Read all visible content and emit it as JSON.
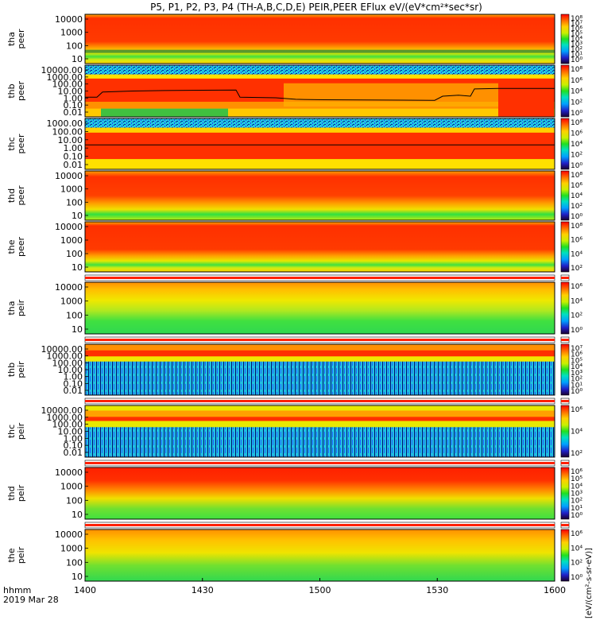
{
  "chart_data": {
    "type": "heatmap",
    "title": "P5, P1, P2, P3, P4 (TH-A,B,C,D,E) PEIR,PEER EFlux eV/(eV*cm²*sec*sr)",
    "x_label_prefix_1": "hhmm",
    "x_label_prefix_2": "2019 Mar 28",
    "x_ticks": [
      "1400",
      "1430",
      "1500",
      "1530",
      "1600"
    ],
    "x_range": [
      "1400",
      "1600"
    ],
    "colorbar_label": "[eV/(cm²-s-sr-eV)]",
    "panels": [
      {
        "id": "tha-peer",
        "label_1": "tha",
        "label_2": "peer",
        "y_ticks": [
          "10000",
          "1000",
          "100",
          "10"
        ],
        "cbar_ticks": [
          "10⁸",
          "10⁷",
          "10⁶",
          "10⁵",
          "10⁴",
          "10³",
          "10²",
          "10¹",
          "10⁰"
        ]
      },
      {
        "id": "thb-peer",
        "label_1": "thb",
        "label_2": "peer",
        "y_ticks": [
          "10000.00",
          "1000.00",
          "100.00",
          "10.00",
          "1.00",
          "0.10",
          "0.01"
        ],
        "cbar_ticks": [
          "10⁸",
          "10⁶",
          "10⁴",
          "10²",
          "10⁰"
        ]
      },
      {
        "id": "thc-peer",
        "label_1": "thc",
        "label_2": "peer",
        "y_ticks": [
          "1000.00",
          "100.00",
          "10.00",
          "1.00",
          "0.10",
          "0.01"
        ],
        "cbar_ticks": [
          "10⁸",
          "10⁶",
          "10⁴",
          "10²",
          "10⁰"
        ]
      },
      {
        "id": "thd-peer",
        "label_1": "thd",
        "label_2": "peer",
        "y_ticks": [
          "10000",
          "1000",
          "100",
          "10"
        ],
        "cbar_ticks": [
          "10⁸",
          "10⁶",
          "10⁴",
          "10²",
          "10⁰"
        ]
      },
      {
        "id": "the-peer",
        "label_1": "the",
        "label_2": "peer",
        "y_ticks": [
          "10000",
          "1000",
          "100",
          "10"
        ],
        "cbar_ticks": [
          "10⁸",
          "10⁶",
          "10⁴",
          "10²"
        ]
      },
      {
        "id": "tha-peir",
        "label_1": "tha",
        "label_2": "peir",
        "y_ticks": [
          "10000",
          "1000",
          "100",
          "10"
        ],
        "cbar_ticks": [
          "10⁶",
          "10⁴",
          "10²",
          "10⁰"
        ]
      },
      {
        "id": "thb-peir",
        "label_1": "thb",
        "label_2": "peir",
        "y_ticks": [
          "10000.00",
          "1000.00",
          "100.00",
          "10.00",
          "1.00",
          "0.10",
          "0.01"
        ],
        "cbar_ticks": [
          "10⁷",
          "10⁶",
          "10⁵",
          "10⁴",
          "10³",
          "10²",
          "10¹",
          "10⁰"
        ]
      },
      {
        "id": "thc-peir",
        "label_1": "thc",
        "label_2": "peir",
        "y_ticks": [
          "10000.00",
          "1000.00",
          "100.00",
          "10.00",
          "1.00",
          "0.10",
          "0.01"
        ],
        "cbar_ticks": [
          "10⁶",
          "10⁴",
          "10²"
        ]
      },
      {
        "id": "thd-peir",
        "label_1": "thd",
        "label_2": "peir",
        "y_ticks": [
          "10000",
          "1000",
          "100",
          "10"
        ],
        "cbar_ticks": [
          "10⁶",
          "10⁵",
          "10⁴",
          "10³",
          "10²",
          "10¹",
          "10⁰"
        ]
      },
      {
        "id": "the-peir",
        "label_1": "the",
        "label_2": "peir",
        "y_ticks": [
          "10000",
          "1000",
          "100",
          "10"
        ],
        "cbar_ticks": [
          "10⁶",
          "10⁴",
          "10²",
          "10⁰"
        ]
      }
    ]
  }
}
